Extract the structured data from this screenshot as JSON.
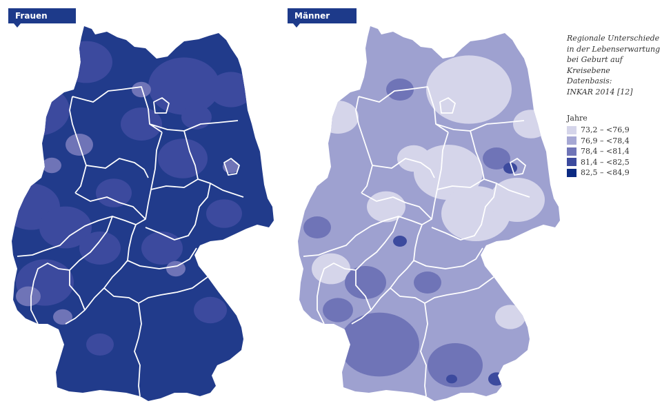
{
  "maps": {
    "frauen": {
      "label": "Frauen",
      "base_color": "#213b8b"
    },
    "maenner": {
      "label": "Männer",
      "base_color": "#9ea1d0"
    }
  },
  "caption": {
    "lines": [
      "Regionale Unterschiede",
      "in der Lebenserwartung",
      "bei Geburt auf",
      "Kreisebene",
      "Datenbasis:",
      "INKAR 2014 [12]"
    ]
  },
  "legend": {
    "title": "Jahre",
    "items": [
      {
        "label": "73,2 – <76,9",
        "color": "#d5d5ea"
      },
      {
        "label": "76,9 – <78,4",
        "color": "#a6a8d4"
      },
      {
        "label": "78,4 – <81,4",
        "color": "#6f74b7"
      },
      {
        "label": "81,4 – <82,5",
        "color": "#3c4a9e"
      },
      {
        "label": "82,5 – <84,9",
        "color": "#0b2a82"
      }
    ]
  }
}
